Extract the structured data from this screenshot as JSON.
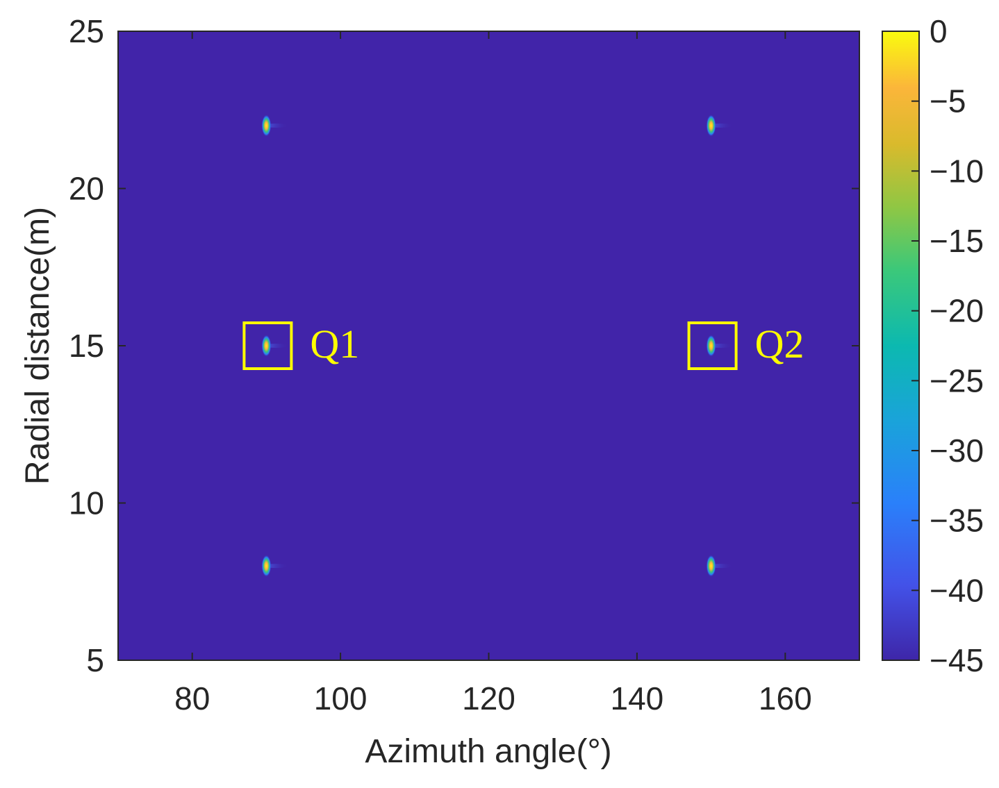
{
  "chart_data": {
    "type": "heatmap",
    "title": "",
    "xlabel": "Azimuth angle(°)",
    "ylabel": "Radial distance(m)",
    "xlim": [
      70,
      170
    ],
    "ylim": [
      5,
      25
    ],
    "xticks": [
      80,
      100,
      120,
      140,
      160
    ],
    "yticks": [
      5,
      10,
      15,
      20,
      25
    ],
    "background_value_db": -45,
    "points": [
      {
        "x": 90,
        "y": 22,
        "peak_db": 0
      },
      {
        "x": 150,
        "y": 22,
        "peak_db": 0
      },
      {
        "x": 90,
        "y": 15,
        "peak_db": 0
      },
      {
        "x": 150,
        "y": 15,
        "peak_db": 0
      },
      {
        "x": 90,
        "y": 8,
        "peak_db": 0
      },
      {
        "x": 150,
        "y": 8,
        "peak_db": 0
      }
    ],
    "annotations": [
      {
        "label": "Q1",
        "x": 90,
        "y": 15,
        "color": "#ffff00"
      },
      {
        "label": "Q2",
        "x": 150,
        "y": 15,
        "color": "#ffff00"
      }
    ],
    "colorbar": {
      "min": -45,
      "max": 0,
      "ticks": [
        0,
        -5,
        -10,
        -15,
        -20,
        -25,
        -30,
        -35,
        -40,
        -45
      ],
      "colormap": "parula"
    },
    "grid": false
  }
}
